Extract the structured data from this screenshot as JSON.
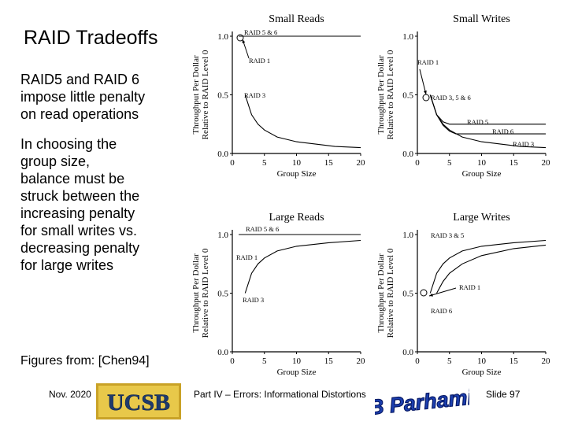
{
  "slide": {
    "title": "RAID Tradeoffs",
    "para1": [
      "RAID5 and RAID 6",
      "impose little penalty",
      "on read operations"
    ],
    "para2": [
      "In choosing the",
      "group size,",
      "balance must be",
      "struck between the",
      "increasing penalty",
      "for small writes vs.",
      "decreasing penalty",
      "for large writes"
    ],
    "credit": "Figures from: [Chen94]",
    "footer": {
      "date": "Nov. 2020",
      "logo": "UCSB",
      "middle": "Part IV – Errors: Informational Distortions",
      "signature": "B Parhami",
      "slide": "Slide 97"
    }
  },
  "chart_data": [
    {
      "type": "line",
      "title": "Small Reads",
      "xlabel": "Group Size",
      "ylabel": [
        "Throughput Per Dollar",
        "Relative to RAID Level 0"
      ],
      "xlim": [
        0,
        20
      ],
      "ylim": [
        0,
        1
      ],
      "xticks": [
        "0",
        "5",
        "10",
        "15",
        "20"
      ],
      "yticks": [
        "0.0",
        "0.5",
        "1.0"
      ],
      "series": [
        {
          "name": "RAID 5 & 6",
          "x": [
            1,
            2,
            5,
            10,
            15,
            20
          ],
          "y": [
            1.0,
            1.0,
            1.0,
            1.0,
            1.0,
            1.0
          ]
        },
        {
          "name": "RAID 3",
          "x": [
            2,
            3,
            4,
            5,
            7,
            10,
            13,
            16,
            20
          ],
          "y": [
            0.5,
            0.33,
            0.25,
            0.2,
            0.14,
            0.1,
            0.08,
            0.06,
            0.05
          ]
        }
      ],
      "annotations": [
        "RAID 5 & 6",
        "RAID 1",
        "RAID 3"
      ]
    },
    {
      "type": "line",
      "title": "Small Writes",
      "xlabel": "Group Size",
      "ylabel": [
        "Throughput Per Dollar",
        "Relative to RAID Level 0"
      ],
      "xlim": [
        0,
        20
      ],
      "ylim": [
        0,
        1
      ],
      "xticks": [
        "0",
        "5",
        "10",
        "15",
        "20"
      ],
      "yticks": [
        "0.0",
        "0.5",
        "1.0"
      ],
      "series": [
        {
          "name": "RAID 3",
          "x": [
            2,
            3,
            4,
            5,
            7,
            10,
            13,
            16,
            20
          ],
          "y": [
            0.5,
            0.33,
            0.25,
            0.2,
            0.14,
            0.1,
            0.08,
            0.06,
            0.05
          ]
        },
        {
          "name": "RAID 5",
          "x": [
            2,
            3,
            4,
            5,
            6,
            20
          ],
          "y": [
            0.5,
            0.33,
            0.27,
            0.25,
            0.25,
            0.25
          ]
        },
        {
          "name": "RAID 6",
          "x": [
            2,
            3,
            4,
            5,
            6,
            20
          ],
          "y": [
            0.5,
            0.33,
            0.24,
            0.19,
            0.167,
            0.167
          ]
        }
      ],
      "annotations": [
        "RAID 1",
        "RAID 3, 5 & 6",
        "RAID 5",
        "RAID 6",
        "RAID 3"
      ]
    },
    {
      "type": "line",
      "title": "Large Reads",
      "xlabel": "Group Size",
      "ylabel": [
        "Throughput Per Dollar",
        "Relative to RAID Level 0"
      ],
      "xlim": [
        0,
        20
      ],
      "ylim": [
        0,
        1
      ],
      "xticks": [
        "0",
        "5",
        "10",
        "15",
        "20"
      ],
      "yticks": [
        "0.0",
        "0.5",
        "1.0"
      ],
      "series": [
        {
          "name": "RAID 5 & 6",
          "x": [
            1,
            2,
            5,
            10,
            15,
            20
          ],
          "y": [
            1.0,
            1.0,
            1.0,
            1.0,
            1.0,
            1.0
          ]
        },
        {
          "name": "RAID 3",
          "x": [
            2,
            3,
            4,
            5,
            7,
            10,
            15,
            20
          ],
          "y": [
            0.5,
            0.67,
            0.75,
            0.8,
            0.86,
            0.9,
            0.93,
            0.95
          ]
        }
      ],
      "annotations": [
        "RAID 5 & 6",
        "RAID 1",
        "RAID 3"
      ]
    },
    {
      "type": "line",
      "title": "Large Writes",
      "xlabel": "Group Size",
      "ylabel": [
        "Throughput Per Dollar",
        "Relative to RAID Level 0"
      ],
      "xlim": [
        0,
        20
      ],
      "ylim": [
        0,
        1
      ],
      "xticks": [
        "0",
        "5",
        "10",
        "15",
        "20"
      ],
      "yticks": [
        "0.0",
        "0.5",
        "1.0"
      ],
      "series": [
        {
          "name": "RAID 3 & 5",
          "x": [
            2,
            3,
            4,
            5,
            7,
            10,
            15,
            20
          ],
          "y": [
            0.5,
            0.67,
            0.75,
            0.8,
            0.86,
            0.9,
            0.93,
            0.95
          ]
        },
        {
          "name": "RAID 6",
          "x": [
            3,
            4,
            5,
            7,
            10,
            15,
            20
          ],
          "y": [
            0.5,
            0.6,
            0.67,
            0.75,
            0.82,
            0.88,
            0.91
          ]
        }
      ],
      "annotations": [
        "RAID 3 & 5",
        "RAID 1",
        "RAID 6"
      ]
    }
  ]
}
